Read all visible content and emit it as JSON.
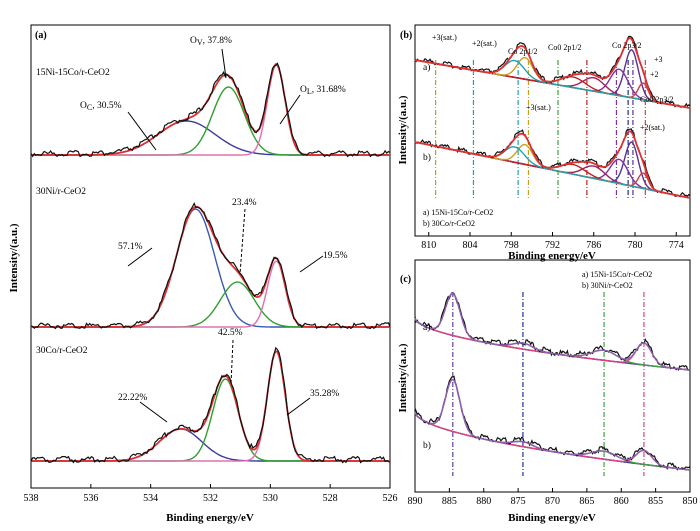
{
  "chart_data": [
    {
      "panel": "(a)",
      "type": "line",
      "xlabel": "Binding energy/eV",
      "ylabel": "Intensity/(a.u.)",
      "xlim": [
        538,
        526
      ],
      "x_ticks": [
        "538",
        "536",
        "534",
        "532",
        "530",
        "528",
        "526"
      ],
      "subplots": [
        {
          "sample": "15Ni-15Co/r-CeO2",
          "components": [
            {
              "label": "O",
              "sub": "C",
              "suffix": ", 30.5%",
              "center": 532.8,
              "color": "#3a3aa0"
            },
            {
              "label": "O",
              "sub": "V",
              "suffix": ", 37.8%",
              "center": 531.4,
              "color": "#2ea02e"
            },
            {
              "label": "O",
              "sub": "L",
              "suffix": ", 31.68%",
              "center": 529.8,
              "color": "#e070b0"
            }
          ]
        },
        {
          "sample": "30Ni/r-CeO2",
          "components": [
            {
              "label": "57.1%",
              "sub": "",
              "suffix": "",
              "center": 532.5,
              "color": "#3a5ab0"
            },
            {
              "label": "23.4%",
              "sub": "",
              "suffix": "",
              "center": 531.1,
              "color": "#2ea02e"
            },
            {
              "label": "19.5%",
              "sub": "",
              "suffix": "",
              "center": 529.8,
              "color": "#e070b0"
            }
          ]
        },
        {
          "sample": "30Co/r-CeO2",
          "components": [
            {
              "label": "22.22%",
              "sub": "",
              "suffix": "",
              "center": 533.0,
              "color": "#3a3aa0"
            },
            {
              "label": "42.5%",
              "sub": "",
              "suffix": "",
              "center": 531.5,
              "color": "#2ea02e"
            },
            {
              "label": "35.28%",
              "sub": "",
              "suffix": "",
              "center": 529.8,
              "color": "#e070b0"
            }
          ]
        }
      ]
    },
    {
      "panel": "(b)",
      "type": "line",
      "xlabel": "Binding energy/eV",
      "ylabel": "Intensity/(a.u.)",
      "xlim": [
        812,
        772
      ],
      "x_ticks": [
        "810",
        "804",
        "798",
        "792",
        "786",
        "780",
        "774"
      ],
      "traces": [
        "a)",
        "b)"
      ],
      "legend": [
        "a) 15Ni-15Co/r-CeO2",
        "b) 30Co/r-CeO2"
      ],
      "annotations": [
        "+3(sat.)",
        "+2(sat.)",
        "Co 2p1/2",
        "Co0 2p1/2",
        "+3(sat.)",
        "Co 2p3/2",
        "+3",
        "+2",
        "Co0 2p3/2",
        "+2(sat.)"
      ],
      "guide_lines": [
        {
          "x": 809.0,
          "color": "#b8a020"
        },
        {
          "x": 803.5,
          "color": "#20a0b0"
        },
        {
          "x": 797.0,
          "color": "#20a0b0"
        },
        {
          "x": 795.5,
          "color": "#c8a020"
        },
        {
          "x": 791.2,
          "color": "#40a040"
        },
        {
          "x": 787.0,
          "color": "#c02020"
        },
        {
          "x": 782.7,
          "color": "#8030a0"
        },
        {
          "x": 781.0,
          "color": "#20308a"
        },
        {
          "x": 780.3,
          "color": "#5a3090"
        },
        {
          "x": 778.5,
          "color": "#d04040"
        }
      ]
    },
    {
      "panel": "(c)",
      "type": "line",
      "xlabel": "Binding energy/eV",
      "ylabel": "Intensity/(a.u.)",
      "xlim": [
        890,
        850
      ],
      "x_ticks": [
        "890",
        "885",
        "880",
        "875",
        "870",
        "865",
        "860",
        "855",
        "850"
      ],
      "traces": [
        "a)",
        "b)"
      ],
      "legend": [
        "a) 15Ni-15Co/r-CeO2",
        "b) 30Ni/r-CeO2"
      ],
      "guide_lines": [
        {
          "x": 884.5,
          "color": "#6040a0"
        },
        {
          "x": 874.3,
          "color": "#2030a0"
        },
        {
          "x": 862.5,
          "color": "#40a040"
        },
        {
          "x": 856.7,
          "color": "#e04080"
        }
      ]
    }
  ]
}
